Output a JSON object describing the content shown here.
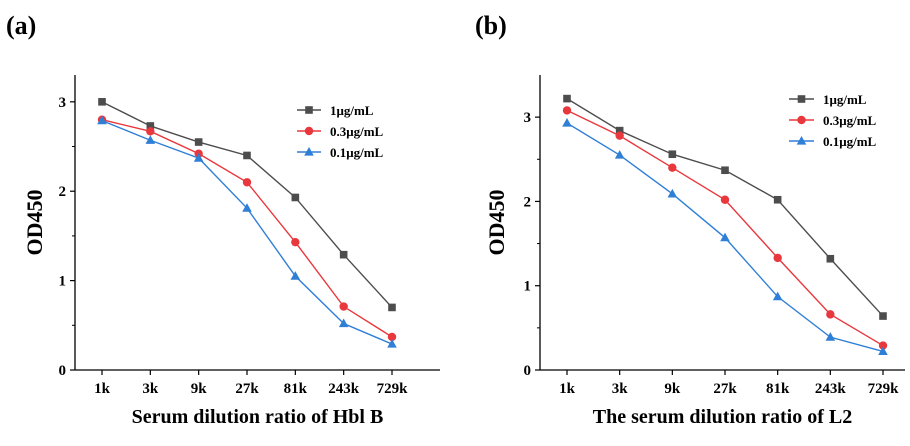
{
  "chart_data": [
    {
      "type": "line",
      "panel_label": "(a)",
      "xlabel": "Serum dilution ratio of Hbl B",
      "ylabel": "OD450",
      "categories": [
        "1k",
        "3k",
        "9k",
        "27k",
        "81k",
        "243k",
        "729k"
      ],
      "ylim": [
        0,
        3.3
      ],
      "yticks": [
        0,
        1,
        2,
        3
      ],
      "grid": false,
      "legend_position": "top-right",
      "series": [
        {
          "name": "1μg/mL",
          "color": "#4d4d4d",
          "marker": "square",
          "values": [
            3.0,
            2.73,
            2.55,
            2.4,
            1.93,
            1.29,
            0.7
          ]
        },
        {
          "name": "0.3μg/mL",
          "color": "#e8383d",
          "marker": "circle",
          "values": [
            2.8,
            2.67,
            2.42,
            2.1,
            1.43,
            0.71,
            0.37
          ]
        },
        {
          "name": "0.1μg/mL",
          "color": "#2f7fd6",
          "marker": "triangle",
          "values": [
            2.79,
            2.57,
            2.37,
            1.81,
            1.05,
            0.52,
            0.29
          ]
        }
      ]
    },
    {
      "type": "line",
      "panel_label": "(b)",
      "xlabel": "The serum dilution ratio of L2",
      "ylabel": "OD450",
      "categories": [
        "1k",
        "3k",
        "9k",
        "27k",
        "81k",
        "243k",
        "729k"
      ],
      "ylim": [
        0,
        3.5
      ],
      "yticks": [
        0,
        1,
        2,
        3
      ],
      "grid": false,
      "legend_position": "top-right",
      "series": [
        {
          "name": "1μg/mL",
          "color": "#4d4d4d",
          "marker": "square",
          "values": [
            3.22,
            2.84,
            2.56,
            2.37,
            2.02,
            1.32,
            0.64
          ]
        },
        {
          "name": "0.3μg/mL",
          "color": "#e8383d",
          "marker": "circle",
          "values": [
            3.08,
            2.78,
            2.4,
            2.02,
            1.33,
            0.66,
            0.29
          ]
        },
        {
          "name": "0.1μg/mL",
          "color": "#2f7fd6",
          "marker": "triangle",
          "values": [
            2.93,
            2.55,
            2.09,
            1.57,
            0.87,
            0.39,
            0.22
          ]
        }
      ]
    }
  ]
}
